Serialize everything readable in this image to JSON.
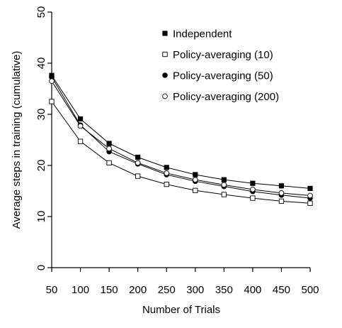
{
  "chart_data": {
    "type": "line",
    "xlabel": "Number of Trials",
    "ylabel": "Average steps in training (cumulative)",
    "xlim": [
      50,
      500
    ],
    "ylim": [
      0,
      50
    ],
    "x": [
      50,
      100,
      150,
      200,
      250,
      300,
      350,
      400,
      450,
      500
    ],
    "x_ticks": [
      50,
      100,
      150,
      200,
      250,
      300,
      350,
      400,
      450,
      500
    ],
    "y_ticks": [
      0,
      10,
      20,
      30,
      40,
      50
    ],
    "grid": false,
    "legend_position": "top-right",
    "series": [
      {
        "name": "Independent",
        "marker": "filled-square",
        "values": [
          37.6,
          29.1,
          24.3,
          21.6,
          19.6,
          18.2,
          17.2,
          16.5,
          16.0,
          15.5
        ]
      },
      {
        "name": "Policy-averaging (10)",
        "marker": "open-square",
        "values": [
          32.5,
          24.7,
          20.5,
          17.9,
          16.3,
          15.1,
          14.3,
          13.6,
          13.0,
          12.6
        ]
      },
      {
        "name": "Policy-averaging (50)",
        "marker": "filled-circle",
        "values": [
          37.3,
          27.9,
          22.7,
          20.3,
          18.2,
          16.9,
          15.9,
          14.9,
          14.2,
          13.6
        ]
      },
      {
        "name": "Policy-averaging (200)",
        "marker": "open-circle",
        "values": [
          36.5,
          27.7,
          23.3,
          20.5,
          18.5,
          17.2,
          16.2,
          15.3,
          14.6,
          14.1
        ]
      }
    ]
  }
}
